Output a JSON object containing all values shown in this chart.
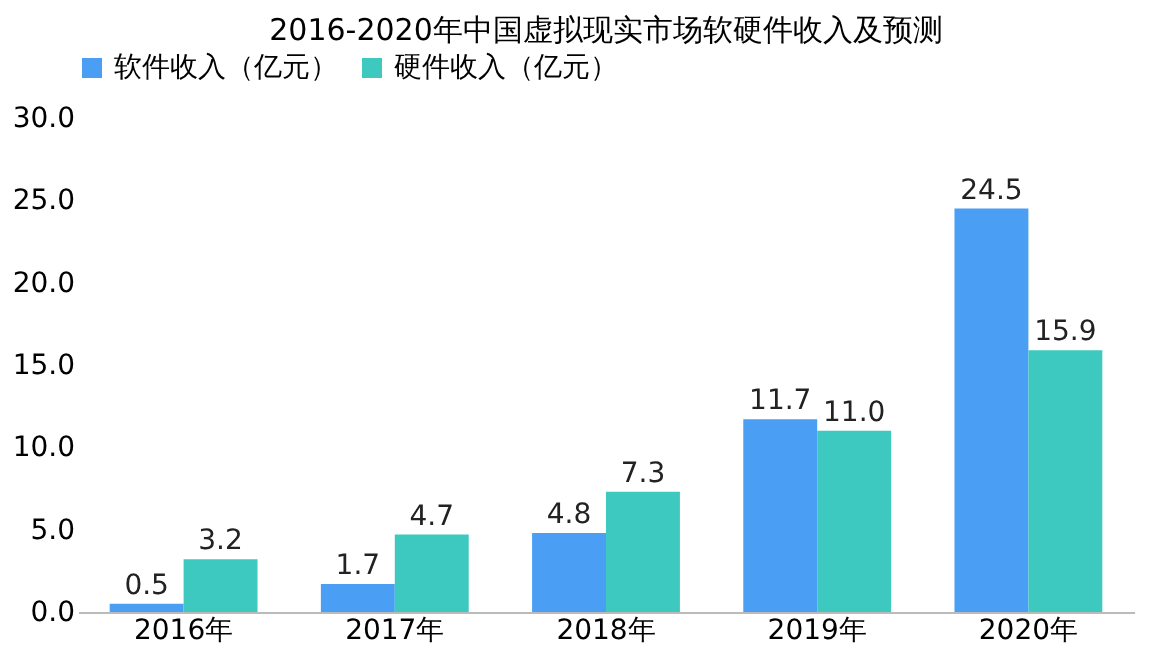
{
  "chart_data": {
    "type": "bar",
    "title": "2016-2020年中国虚拟现实市场软硬件收入及预测",
    "categories": [
      "2016年",
      "2017年",
      "2018年",
      "2019年",
      "2020年"
    ],
    "series": [
      {
        "name": "软件收入（亿元）",
        "color": "#4a9ff5",
        "values": [
          0.5,
          1.7,
          4.8,
          11.7,
          24.5
        ],
        "value_labels": [
          "0.5",
          "1.7",
          "4.8",
          "11.7",
          "24.5"
        ]
      },
      {
        "name": "硬件收入（亿元）",
        "color": "#3ec9c0",
        "values": [
          3.2,
          4.7,
          7.3,
          11.0,
          15.9
        ],
        "value_labels": [
          "3.2",
          "4.7",
          "7.3",
          "11.0",
          "15.9"
        ]
      }
    ],
    "ylim": [
      0,
      30
    ],
    "yticks": [
      {
        "value": 0,
        "label": "0.0"
      },
      {
        "value": 5,
        "label": "5.0"
      },
      {
        "value": 10,
        "label": "10.0"
      },
      {
        "value": 15,
        "label": "15.0"
      },
      {
        "value": 20,
        "label": "20.0"
      },
      {
        "value": 25,
        "label": "25.0"
      },
      {
        "value": 30,
        "label": "30.0"
      }
    ],
    "legend": "top",
    "grid": false
  }
}
